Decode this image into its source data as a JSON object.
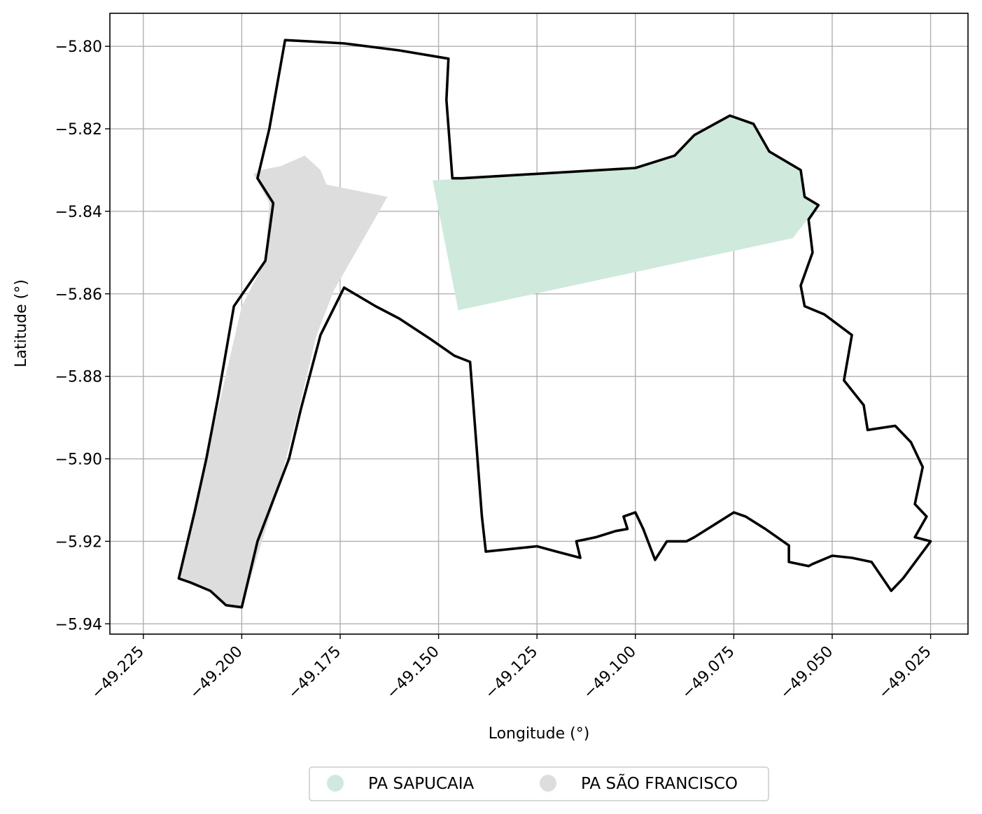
{
  "map": {
    "xlabel": "Longitude (°)",
    "ylabel": "Latitude (°)",
    "xlim": [
      -49.2335,
      -49.0155
    ],
    "ylim": [
      -5.9425,
      -5.792
    ],
    "grid": true,
    "xticks": [
      "−49.225",
      "−49.200",
      "−49.175",
      "−49.150",
      "−49.125",
      "−49.100",
      "−49.075",
      "−49.050",
      "−49.025"
    ],
    "xtick_values": [
      -49.225,
      -49.2,
      -49.175,
      -49.15,
      -49.125,
      -49.1,
      -49.075,
      -49.05,
      -49.025
    ],
    "yticks": [
      "−5.80",
      "−5.82",
      "−5.84",
      "−5.86",
      "−5.88",
      "−5.90",
      "−5.92",
      "−5.94"
    ],
    "ytick_values": [
      -5.8,
      -5.82,
      -5.84,
      -5.86,
      -5.88,
      -5.9,
      -5.92,
      -5.94
    ],
    "legend_position": "bottom-center",
    "colors": {
      "sapucaia": "#cfeadd",
      "sao_francisco": "#dddddd",
      "boundary": "#000000",
      "grid": "#b0b0b0"
    }
  },
  "legend": {
    "items": [
      {
        "label": "PA SAPUCAIA",
        "color": "#cfeadd"
      },
      {
        "label": "PA SÃO FRANCISCO",
        "color": "#dddddd"
      }
    ]
  },
  "chart_data": {
    "type": "map",
    "xlabel": "Longitude (°)",
    "ylabel": "Latitude (°)",
    "features": [
      {
        "name": "PA SAPUCAIA",
        "color": "#cfeadd",
        "coords": [
          [
            -49.1515,
            -5.8325
          ],
          [
            -49.1,
            -5.8295
          ],
          [
            -49.09,
            -5.8265
          ],
          [
            -49.085,
            -5.8215
          ],
          [
            -49.076,
            -5.8168
          ],
          [
            -49.07,
            -5.8188
          ],
          [
            -49.066,
            -5.8255
          ],
          [
            -49.058,
            -5.83
          ],
          [
            -49.057,
            -5.8365
          ],
          [
            -49.0535,
            -5.8385
          ],
          [
            -49.06,
            -5.8465
          ],
          [
            -49.145,
            -5.864
          ]
        ]
      },
      {
        "name": "PA SÃO FRANCISCO",
        "color": "#dddddd",
        "coords": [
          [
            -49.195,
            -5.83
          ],
          [
            -49.19,
            -5.829
          ],
          [
            -49.184,
            -5.8265
          ],
          [
            -49.18,
            -5.83
          ],
          [
            -49.1785,
            -5.8335
          ],
          [
            -49.163,
            -5.8365
          ],
          [
            -49.1765,
            -5.859
          ],
          [
            -49.181,
            -5.87
          ],
          [
            -49.186,
            -5.89
          ],
          [
            -49.191,
            -5.908
          ],
          [
            -49.2,
            -5.936
          ],
          [
            -49.204,
            -5.9355
          ],
          [
            -49.208,
            -5.932
          ],
          [
            -49.216,
            -5.929
          ],
          [
            -49.208,
            -5.896
          ],
          [
            -49.2,
            -5.863
          ],
          [
            -49.194,
            -5.852
          ],
          [
            -49.193,
            -5.838
          ],
          [
            -49.197,
            -5.831
          ]
        ]
      }
    ],
    "boundaries": [
      [
        [
          -49.189,
          -5.7985
        ],
        [
          -49.183,
          -5.7988
        ],
        [
          -49.174,
          -5.7993
        ],
        [
          -49.16,
          -5.801
        ],
        [
          -49.1475,
          -5.803
        ],
        [
          -49.148,
          -5.813
        ],
        [
          -49.1465,
          -5.832
        ],
        [
          -49.144,
          -5.832
        ],
        [
          -49.1,
          -5.8295
        ],
        [
          -49.09,
          -5.8265
        ],
        [
          -49.085,
          -5.8215
        ],
        [
          -49.076,
          -5.8168
        ],
        [
          -49.07,
          -5.8188
        ],
        [
          -49.066,
          -5.8255
        ],
        [
          -49.058,
          -5.83
        ],
        [
          -49.057,
          -5.8365
        ],
        [
          -49.0535,
          -5.8385
        ],
        [
          -49.056,
          -5.842
        ],
        [
          -49.055,
          -5.85
        ],
        [
          -49.058,
          -5.858
        ],
        [
          -49.057,
          -5.863
        ],
        [
          -49.052,
          -5.865
        ],
        [
          -49.045,
          -5.87
        ],
        [
          -49.047,
          -5.881
        ],
        [
          -49.042,
          -5.887
        ],
        [
          -49.041,
          -5.893
        ],
        [
          -49.034,
          -5.892
        ],
        [
          -49.03,
          -5.896
        ],
        [
          -49.027,
          -5.902
        ],
        [
          -49.029,
          -5.911
        ],
        [
          -49.026,
          -5.914
        ],
        [
          -49.029,
          -5.919
        ],
        [
          -49.025,
          -5.92
        ],
        [
          -49.032,
          -5.929
        ],
        [
          -49.035,
          -5.932
        ],
        [
          -49.04,
          -5.925
        ],
        [
          -49.045,
          -5.924
        ],
        [
          -49.05,
          -5.9235
        ],
        [
          -49.055,
          -5.9255
        ],
        [
          -49.056,
          -5.926
        ],
        [
          -49.061,
          -5.925
        ],
        [
          -49.061,
          -5.921
        ],
        [
          -49.067,
          -5.917
        ],
        [
          -49.072,
          -5.914
        ],
        [
          -49.075,
          -5.913
        ],
        [
          -49.08,
          -5.916
        ],
        [
          -49.085,
          -5.919
        ],
        [
          -49.087,
          -5.92
        ],
        [
          -49.092,
          -5.92
        ],
        [
          -49.095,
          -5.9245
        ],
        [
          -49.098,
          -5.917
        ],
        [
          -49.1,
          -5.913
        ],
        [
          -49.103,
          -5.914
        ],
        [
          -49.102,
          -5.917
        ],
        [
          -49.105,
          -5.9175
        ],
        [
          -49.11,
          -5.919
        ],
        [
          -49.115,
          -5.92
        ],
        [
          -49.114,
          -5.924
        ],
        [
          -49.12,
          -5.9225
        ],
        [
          -49.125,
          -5.9212
        ],
        [
          -49.138,
          -5.9225
        ],
        [
          -49.139,
          -5.914
        ],
        [
          -49.142,
          -5.8765
        ],
        [
          -49.146,
          -5.875
        ],
        [
          -49.152,
          -5.871
        ],
        [
          -49.16,
          -5.866
        ],
        [
          -49.166,
          -5.863
        ],
        [
          -49.174,
          -5.8585
        ],
        [
          -49.18,
          -5.87
        ],
        [
          -49.185,
          -5.888
        ],
        [
          -49.188,
          -5.9
        ],
        [
          -49.192,
          -5.91
        ],
        [
          -49.196,
          -5.92
        ],
        [
          -49.2,
          -5.936
        ],
        [
          -49.204,
          -5.9355
        ],
        [
          -49.208,
          -5.932
        ],
        [
          -49.213,
          -5.93
        ],
        [
          -49.216,
          -5.929
        ],
        [
          -49.212,
          -5.913
        ],
        [
          -49.209,
          -5.9
        ],
        [
          -49.206,
          -5.885
        ],
        [
          -49.202,
          -5.863
        ],
        [
          -49.194,
          -5.852
        ],
        [
          -49.192,
          -5.838
        ],
        [
          -49.196,
          -5.832
        ],
        [
          -49.193,
          -5.82
        ],
        [
          -49.189,
          -5.7985
        ]
      ]
    ]
  }
}
